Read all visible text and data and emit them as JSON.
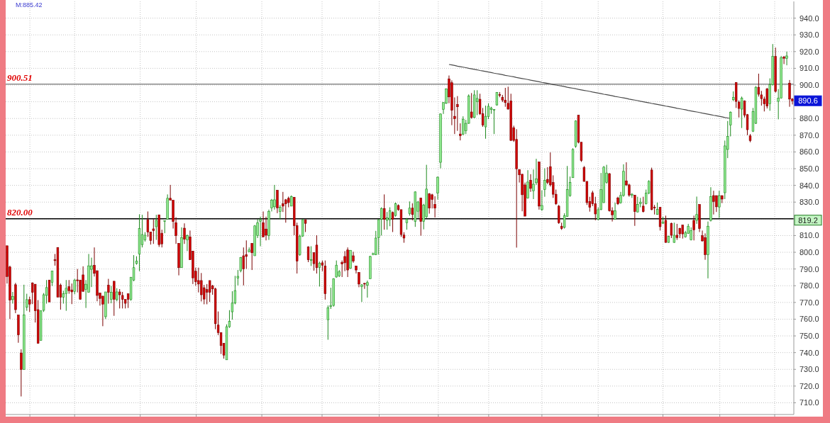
{
  "chart_data": {
    "type": "candlestick",
    "categories": [
      null,
      null,
      null,
      null,
      null,
      null,
      null,
      null,
      null,
      null,
      null,
      null,
      null,
      null,
      null,
      null,
      null,
      null,
      null,
      null,
      null,
      null,
      null,
      null,
      null,
      null,
      null,
      null,
      null,
      null,
      null,
      null,
      null,
      null,
      null,
      null,
      null,
      null,
      null,
      null,
      null,
      null,
      null,
      null,
      null,
      null,
      null,
      null,
      null,
      null,
      null,
      null,
      null,
      null,
      null,
      null,
      null,
      null,
      null,
      null,
      null,
      null,
      null,
      null,
      null,
      null,
      null,
      null,
      null,
      null,
      null,
      null,
      null,
      null,
      null,
      null,
      null,
      null,
      null,
      null,
      null,
      null,
      null,
      null,
      null,
      null,
      null,
      null,
      null,
      null,
      null,
      null,
      null,
      null,
      null,
      null,
      null,
      null,
      null,
      null,
      null,
      null,
      null,
      null,
      null,
      null,
      null,
      null,
      null,
      null,
      null,
      null,
      null,
      null,
      null,
      null,
      null,
      null,
      null,
      null,
      null,
      null,
      null,
      null,
      null,
      null,
      null,
      null,
      null,
      null,
      null,
      null,
      null,
      null,
      null,
      null,
      null,
      null,
      null,
      null,
      null,
      null,
      null,
      null,
      null,
      null,
      null,
      null,
      null,
      null,
      null,
      null,
      null,
      null,
      null,
      null,
      null,
      null,
      null,
      null,
      null,
      null,
      null,
      null,
      null,
      null,
      null,
      null,
      null,
      null,
      null,
      null,
      null,
      null,
      null,
      null,
      null,
      null,
      null,
      null,
      null,
      null,
      null,
      null,
      null,
      null,
      null,
      null,
      null,
      null,
      null,
      null,
      null,
      null,
      null,
      null,
      null,
      null,
      null,
      null,
      null,
      null,
      null,
      null,
      null,
      null,
      null,
      null,
      null,
      null,
      null,
      null,
      null,
      null,
      null,
      null,
      null,
      null,
      null,
      null,
      null,
      null,
      null,
      null,
      null,
      null,
      null,
      null,
      null,
      null,
      null,
      null,
      null,
      null,
      null,
      null,
      null,
      null,
      null,
      null,
      null,
      null,
      null,
      null,
      null,
      null,
      null,
      null,
      null,
      null,
      null,
      null,
      null,
      null,
      null,
      null,
      null,
      null,
      null,
      null,
      null,
      null,
      null,
      null,
      null,
      null,
      null,
      null,
      null,
      null,
      null,
      null,
      null,
      null,
      null,
      null,
      null,
      null,
      null,
      null
    ],
    "ohlc": [
      [
        803.9,
        803.9,
        781.3,
        785.5
      ],
      [
        791.2,
        792,
        760.1,
        771.4
      ],
      [
        771.7,
        776.3,
        769.3,
        773.5
      ],
      [
        780.6,
        781.7,
        763.6,
        765.7
      ],
      [
        762.5,
        762.5,
        745.9,
        750.6
      ],
      [
        739.8,
        742,
        713.8,
        729.9
      ],
      [
        729.9,
        780.6,
        729.9,
        762.5
      ],
      [
        767.1,
        775.2,
        765,
        771.7
      ],
      [
        771.7,
        773.5,
        764.3,
        769
      ],
      [
        781.7,
        782,
        769,
        776
      ],
      [
        780.9,
        780.9,
        758,
        765
      ],
      [
        765.7,
        771.4,
        745.5,
        745.5
      ],
      [
        747.3,
        765,
        747.3,
        765
      ],
      [
        765.3,
        775.6,
        764.3,
        774.6
      ],
      [
        774.2,
        783.4,
        769.3,
        778.9
      ],
      [
        783.4,
        783.4,
        770.3,
        770.3
      ],
      [
        782,
        788.8,
        779.9,
        788.8
      ],
      [
        795.5,
        799,
        792,
        795
      ],
      [
        802.9,
        802.9,
        773.2,
        773.2
      ],
      [
        780.3,
        781.3,
        765.7,
        773.2
      ],
      [
        773.2,
        777,
        769.3,
        775.2
      ],
      [
        775.2,
        783.4,
        765,
        778.5
      ],
      [
        779.4,
        783.4,
        775.2,
        777
      ],
      [
        777.5,
        781.3,
        769,
        776.3
      ],
      [
        776.6,
        784.1,
        774.9,
        783.4
      ],
      [
        783.5,
        790,
        776,
        783
      ],
      [
        783.4,
        783.4,
        771.8,
        771.8
      ],
      [
        786.5,
        791.6,
        776.6,
        776.6
      ],
      [
        777.8,
        783.4,
        766.7,
        780.9
      ],
      [
        776,
        799,
        776,
        791.9
      ],
      [
        789.8,
        796.8,
        779.2,
        791.9
      ],
      [
        792.2,
        802.9,
        785.5,
        787.4
      ],
      [
        789,
        789,
        770.7,
        774.2
      ],
      [
        775.6,
        775.6,
        768.1,
        772.4
      ],
      [
        773.8,
        773.8,
        755.8,
        769
      ],
      [
        761.5,
        776.3,
        760.1,
        776.3
      ],
      [
        780.3,
        784.1,
        769.3,
        776
      ],
      [
        771.8,
        779.9,
        769.5,
        776
      ],
      [
        782.7,
        782.7,
        762,
        771.8
      ],
      [
        771.7,
        778.5,
        770.7,
        776.3
      ],
      [
        776.3,
        778,
        766.4,
        774.6
      ],
      [
        774.2,
        776.3,
        766.4,
        771.8
      ],
      [
        771.8,
        771.8,
        766.4,
        769.5
      ],
      [
        775.2,
        775.2,
        766.7,
        771.8
      ],
      [
        771.8,
        785.1,
        771,
        785.1
      ],
      [
        783.4,
        798.3,
        782.7,
        790.8
      ],
      [
        793.3,
        797.6,
        792.6,
        794.7
      ],
      [
        798.9,
        822.7,
        788.7,
        814.2
      ],
      [
        804.6,
        822.4,
        802.9,
        810.6
      ],
      [
        807.4,
        812,
        806.4,
        810.2
      ],
      [
        819.5,
        824.4,
        809.2,
        812.1
      ],
      [
        812.1,
        812.1,
        804.6,
        807.1
      ],
      [
        814,
        819.8,
        805,
        813
      ],
      [
        815.3,
        822.4,
        807.4,
        819.1
      ],
      [
        822.4,
        822.4,
        803.2,
        804.6
      ],
      [
        811.4,
        813.5,
        802.9,
        805
      ],
      [
        818.4,
        818.9,
        811.4,
        818.9
      ],
      [
        819.8,
        834.6,
        819.8,
        832.3
      ],
      [
        832.3,
        840.3,
        831.1,
        831.1
      ],
      [
        831.1,
        831.1,
        814.2,
        818.4
      ],
      [
        817.7,
        821,
        805,
        809.9
      ],
      [
        805.4,
        805.4,
        786.2,
        790.8
      ],
      [
        790.8,
        814.9,
        790.8,
        808.8
      ],
      [
        814.4,
        817.3,
        805,
        807.8
      ],
      [
        807.4,
        810.6,
        800.7,
        809.9
      ],
      [
        809.2,
        813,
        795.5,
        795.5
      ],
      [
        800.7,
        800.7,
        781,
        784.7
      ],
      [
        788.7,
        790.8,
        780,
        782.4
      ],
      [
        783.1,
        790.8,
        776,
        781
      ],
      [
        783.1,
        787.6,
        770.6,
        774.6
      ],
      [
        778.8,
        780.5,
        768.9,
        772
      ],
      [
        777.7,
        781,
        768.9,
        776
      ],
      [
        783.1,
        783.1,
        770.3,
        776
      ],
      [
        780,
        780.5,
        774.6,
        778.1
      ],
      [
        778.1,
        778.8,
        754,
        757.3
      ],
      [
        756.5,
        764.6,
        750.5,
        752
      ],
      [
        752,
        752,
        739.2,
        744.2
      ],
      [
        745.6,
        745.6,
        736.4,
        738.5
      ],
      [
        735.7,
        756.9,
        735.7,
        755.5
      ],
      [
        755.5,
        765.4,
        754.8,
        758.7
      ],
      [
        764.4,
        776.7,
        759.7,
        769.6
      ],
      [
        769.6,
        785.9,
        768.9,
        777.1
      ],
      [
        784.5,
        789.4,
        780.2,
        785.6
      ],
      [
        789,
        797.2,
        788,
        796.9
      ],
      [
        797.9,
        802.9,
        780.2,
        790.1
      ],
      [
        798.6,
        807.1,
        790.1,
        797.5
      ],
      [
        800.3,
        802.9,
        800,
        801.4
      ],
      [
        805.4,
        805.4,
        789.4,
        799.7
      ],
      [
        797.9,
        816.3,
        797.9,
        815.8
      ],
      [
        809.9,
        819.8,
        808.5,
        817.7
      ],
      [
        818.4,
        821.3,
        803.6,
        819.5
      ],
      [
        817.7,
        824.4,
        809.2,
        809.2
      ],
      [
        813.9,
        821.3,
        807.1,
        810.2
      ],
      [
        810,
        825.5,
        807.4,
        824.3
      ],
      [
        826.6,
        831.9,
        824.4,
        831.2
      ],
      [
        827.2,
        840.3,
        825.5,
        831.4
      ],
      [
        837.1,
        837.1,
        823.4,
        826.6
      ],
      [
        824.4,
        828.3,
        819.8,
        826.9
      ],
      [
        829,
        836.1,
        824.1,
        827.6
      ],
      [
        831.4,
        831.9,
        817.7,
        829
      ],
      [
        832.3,
        833.3,
        826.9,
        829.7
      ],
      [
        827.6,
        834,
        827.6,
        833.3
      ],
      [
        832.9,
        832.9,
        810.2,
        815.9
      ],
      [
        815.9,
        817.7,
        787.3,
        794.7
      ],
      [
        798.6,
        810.6,
        797.9,
        809.7
      ],
      [
        809.7,
        819.8,
        809.2,
        819.5
      ],
      [
        819.5,
        819.5,
        812.1,
        817.3
      ],
      [
        803.2,
        803.6,
        794.1,
        795.5
      ],
      [
        795.1,
        803.6,
        791.8,
        795.5
      ],
      [
        799.8,
        799.8,
        789,
        793.2
      ],
      [
        804.3,
        810.2,
        787.3,
        790.8
      ],
      [
        791,
        794.4,
        779.5,
        793.5
      ],
      [
        793.7,
        795.1,
        788.7,
        792.3
      ],
      [
        791.8,
        795.1,
        771.7,
        775.3
      ],
      [
        759.7,
        768.2,
        747.7,
        766.8
      ],
      [
        767.5,
        778.8,
        766.1,
        768.2
      ],
      [
        768.2,
        784.5,
        767.5,
        784.2
      ],
      [
        785.2,
        795.1,
        784.8,
        792.3
      ],
      [
        785.9,
        789.4,
        785.2,
        788.4
      ],
      [
        794,
        795.1,
        785.2,
        793
      ],
      [
        797.5,
        800.7,
        788.7,
        793.7
      ],
      [
        801.4,
        802.9,
        785.2,
        789.4
      ],
      [
        790.4,
        801.2,
        790.1,
        801.2
      ],
      [
        797.9,
        800.3,
        793.7,
        794.7
      ],
      [
        791.8,
        791.8,
        787.3,
        789.4
      ],
      [
        788,
        788,
        779.1,
        781
      ],
      [
        779.5,
        781,
        770.3,
        780.5
      ],
      [
        781.4,
        781.7,
        778.1,
        781
      ],
      [
        780.2,
        783.1,
        772.9,
        781.9
      ],
      [
        784.2,
        797.9,
        784.2,
        797.5
      ],
      [
        798.6,
        799.7,
        798.3,
        799.3
      ],
      [
        798.6,
        812.8,
        798.3,
        808.5
      ],
      [
        808.8,
        819.8,
        798.6,
        819.5
      ],
      [
        819.8,
        826.9,
        810,
        826.2
      ],
      [
        826.2,
        834.6,
        813.5,
        819.8
      ],
      [
        819.1,
        824.1,
        813.5,
        820.5
      ],
      [
        819.5,
        826.9,
        815.6,
        824.8
      ],
      [
        823.8,
        824.4,
        812.1,
        819.8
      ],
      [
        822,
        829.7,
        821.3,
        829
      ],
      [
        828,
        828.6,
        824.8,
        825.5
      ],
      [
        825.5,
        825.5,
        809.2,
        810.6
      ],
      [
        810.3,
        812,
        805.7,
        808.5
      ],
      [
        817.7,
        820.5,
        813.5,
        819.8
      ],
      [
        823.1,
        830.4,
        821.9,
        826.4
      ],
      [
        826.4,
        829.3,
        819.1,
        822.6
      ],
      [
        818.4,
        836.4,
        815.2,
        836.1
      ],
      [
        824.5,
        830.7,
        820.5,
        830.1
      ],
      [
        832.5,
        832.5,
        809.9,
        818.4
      ],
      [
        818.4,
        829,
        813.7,
        828.3
      ],
      [
        821.2,
        852.3,
        820.5,
        837.8
      ],
      [
        835,
        835.4,
        823.1,
        826.4
      ],
      [
        834.4,
        835,
        826.2,
        831.5
      ],
      [
        828.7,
        833.5,
        820.8,
        826.4
      ],
      [
        835.4,
        845.3,
        831.5,
        844.9
      ],
      [
        853.8,
        883,
        850.2,
        882.7
      ],
      [
        885.5,
        889.8,
        882.7,
        889.5
      ],
      [
        889.1,
        898,
        888.7,
        897.6
      ],
      [
        903.7,
        905.7,
        889.1,
        892.9
      ],
      [
        901.4,
        902.8,
        876,
        884.9
      ],
      [
        881.3,
        892.6,
        870.7,
        879.9
      ],
      [
        888.4,
        893.4,
        872.6,
        887
      ],
      [
        870.7,
        877.1,
        866.9,
        869.7
      ],
      [
        870.7,
        881.3,
        870,
        879.6
      ],
      [
        872.6,
        879.2,
        870.7,
        877.1
      ],
      [
        877.1,
        894.4,
        876.8,
        893.4
      ],
      [
        883.9,
        895.2,
        879.9,
        880.6
      ],
      [
        880.6,
        896.9,
        880.2,
        894.1
      ],
      [
        890,
        896.9,
        882,
        892
      ],
      [
        891.5,
        894.8,
        882.1,
        882.8
      ],
      [
        882.8,
        886.3,
        875,
        876
      ],
      [
        875,
        887.7,
        867.9,
        881.3
      ],
      [
        881.1,
        889.1,
        879.6,
        887.3
      ],
      [
        885.3,
        887,
        882.8,
        886.3
      ],
      [
        884.9,
        885.4,
        870.7,
        885.4
      ],
      [
        888.1,
        895.8,
        887.7,
        895.5
      ],
      [
        894.3,
        895.8,
        892.7,
        893.8
      ],
      [
        892.7,
        894.1,
        889.8,
        891
      ],
      [
        891,
        898.3,
        887,
        889.5
      ],
      [
        889.1,
        899,
        885.3,
        885.6
      ],
      [
        890.5,
        894.8,
        866.5,
        866.9
      ],
      [
        874.5,
        875.7,
        866,
        866.9
      ],
      [
        867.5,
        873.6,
        802.8,
        849.9
      ],
      [
        849.5,
        849.5,
        841.7,
        846.3
      ],
      [
        846.7,
        846.7,
        824.5,
        834.4
      ],
      [
        840.3,
        841.7,
        821.6,
        821.6
      ],
      [
        832.5,
        849.1,
        832.1,
        842
      ],
      [
        843.1,
        846.7,
        836.1,
        838.2
      ],
      [
        836.8,
        849.5,
        831.8,
        840.7
      ],
      [
        841.6,
        855.9,
        840.3,
        843.8
      ],
      [
        854,
        854,
        825.5,
        827.6
      ],
      [
        825.5,
        837.1,
        824.8,
        828
      ],
      [
        837.5,
        850.2,
        833.2,
        843.1
      ],
      [
        843.6,
        850.9,
        840.7,
        841.7
      ],
      [
        851.2,
        859.7,
        839.3,
        840.3
      ],
      [
        841.7,
        846,
        832.5,
        834.7
      ],
      [
        834.7,
        837.5,
        828.3,
        829
      ],
      [
        827.6,
        828.3,
        817,
        817.7
      ],
      [
        815.6,
        817.7,
        813.4,
        814.2
      ],
      [
        814.9,
        823.3,
        814.2,
        821.9
      ],
      [
        821.5,
        851.6,
        821.2,
        837.5
      ],
      [
        833.9,
        845.3,
        833.2,
        841.7
      ],
      [
        844.6,
        862.2,
        844.6,
        861.5
      ],
      [
        863.4,
        878.9,
        862.5,
        878.5
      ],
      [
        882,
        882,
        865.1,
        865.8
      ],
      [
        865.8,
        865.8,
        854,
        854.9
      ],
      [
        850.6,
        851.6,
        842.2,
        842.4
      ],
      [
        842.4,
        842.4,
        828.3,
        829.7
      ],
      [
        830.4,
        833.2,
        824.3,
        826.9
      ],
      [
        835.6,
        836.8,
        827.6,
        829
      ],
      [
        829,
        833.2,
        819.1,
        822.9
      ],
      [
        819.8,
        826.9,
        819.1,
        825.5
      ],
      [
        825.5,
        847.4,
        825.2,
        837.5
      ],
      [
        829.7,
        851.6,
        829.4,
        850.9
      ],
      [
        841.7,
        852.3,
        841,
        847.4
      ],
      [
        847,
        847.4,
        824.3,
        824.8
      ],
      [
        824.8,
        826.9,
        818.4,
        822.4
      ],
      [
        819.8,
        829.7,
        819.5,
        824.8
      ],
      [
        832.5,
        833.2,
        828.3,
        829
      ],
      [
        829.7,
        836.1,
        829,
        834
      ],
      [
        834,
        852.6,
        833.2,
        848.4
      ],
      [
        842.7,
        853.8,
        839.6,
        840.3
      ],
      [
        840.3,
        841,
        833.2,
        834.2
      ],
      [
        834.2,
        835.4,
        832.5,
        834.7
      ],
      [
        834.2,
        834.2,
        815.8,
        824.3
      ],
      [
        824.1,
        833.2,
        823.8,
        828.6
      ],
      [
        829,
        832.5,
        826.9,
        830
      ],
      [
        827.6,
        833.2,
        823.8,
        824.3
      ],
      [
        829,
        837.5,
        828.6,
        835.4
      ],
      [
        835.4,
        843.1,
        834.7,
        842.4
      ],
      [
        849.2,
        850.6,
        825.2,
        825.5
      ],
      [
        827,
        828.3,
        822.6,
        826.5
      ],
      [
        822.6,
        829.7,
        822.4,
        825.7
      ],
      [
        826.9,
        826.9,
        813,
        815.3
      ],
      [
        817.3,
        821.2,
        817,
        818.1
      ],
      [
        819.1,
        821.9,
        805.7,
        805.9
      ],
      [
        805.9,
        809.9,
        805.7,
        809.6
      ],
      [
        817.3,
        817.7,
        808.5,
        810.2
      ],
      [
        805.9,
        817.7,
        805.7,
        810.2
      ],
      [
        810.2,
        817,
        807.4,
        808.8
      ],
      [
        814.4,
        814.4,
        808.5,
        811
      ],
      [
        816.3,
        816.3,
        808.2,
        811
      ],
      [
        809.2,
        812.8,
        808.8,
        811.6
      ],
      [
        811.3,
        817,
        811,
        815.6
      ],
      [
        807.4,
        814.9,
        807.1,
        813
      ],
      [
        819.1,
        821.9,
        807.1,
        813.4
      ],
      [
        819.1,
        833.3,
        817,
        822.6
      ],
      [
        828.6,
        828.6,
        812.1,
        814.2
      ],
      [
        809.9,
        813,
        806.4,
        806.8
      ],
      [
        808.8,
        811.3,
        795.5,
        798.6
      ],
      [
        798.6,
        818.4,
        784.4,
        815.6
      ],
      [
        819.1,
        838.9,
        818.4,
        833.2
      ],
      [
        833.9,
        836.8,
        822.6,
        830.4
      ],
      [
        833.9,
        833.9,
        824.1,
        827.2
      ],
      [
        827.1,
        836.8,
        820.5,
        833.9
      ],
      [
        833.9,
        833.9,
        829.4,
        831.8
      ],
      [
        835.6,
        866.8,
        831.8,
        863.6
      ],
      [
        861.5,
        878.5,
        856.3,
        869.3
      ],
      [
        876.1,
        884.2,
        869.3,
        883.8
      ],
      [
        891.2,
        896.2,
        890.5,
        892.6
      ],
      [
        901.6,
        901.6,
        886.3,
        890.2
      ],
      [
        889.8,
        890.8,
        880.6,
        886
      ],
      [
        885.6,
        893.1,
        874.3,
        892.2
      ],
      [
        890.5,
        890.8,
        880.6,
        882
      ],
      [
        882.3,
        882.7,
        870,
        873.3
      ],
      [
        869.6,
        870.7,
        865.8,
        866.8
      ],
      [
        872.4,
        886.3,
        871.9,
        884.2
      ],
      [
        877.1,
        899.3,
        876.7,
        898.7
      ],
      [
        898.7,
        906.8,
        893.1,
        894.5
      ],
      [
        894.1,
        896.5,
        887.7,
        891.9
      ],
      [
        891.6,
        893.1,
        884.2,
        888.8
      ],
      [
        897.6,
        898.3,
        886,
        887.4
      ],
      [
        888.8,
        904,
        884.6,
        900.2
      ],
      [
        900.2,
        924.5,
        899.7,
        917.1
      ],
      [
        917.1,
        922.4,
        895.5,
        896.2
      ],
      [
        890.2,
        897.6,
        879.5,
        892.2
      ],
      [
        892.2,
        917.4,
        891.9,
        916.3
      ],
      [
        916.7,
        917.4,
        912.5,
        916
      ],
      [
        916,
        920,
        911.8,
        917.4
      ],
      [
        901.1,
        903,
        887,
        891.6
      ],
      [
        891.6,
        892.2,
        888.4,
        890.6
      ]
    ],
    "series": [
      {
        "type": "line",
        "color": "#4a4a4a",
        "values": [
          null,
          null,
          null,
          null,
          null,
          null,
          null,
          null,
          null,
          null,
          null,
          null,
          null,
          null,
          null,
          null,
          null,
          null,
          null,
          null,
          null,
          null,
          null,
          null,
          null,
          null,
          null,
          null,
          null,
          null,
          null,
          null,
          null,
          null,
          null,
          null,
          null,
          null,
          null,
          null,
          null,
          null,
          null,
          null,
          null,
          null,
          null,
          null,
          null,
          null,
          null,
          null,
          null,
          null,
          null,
          null,
          null,
          null,
          null,
          null,
          null,
          null,
          null,
          null,
          null,
          null,
          null,
          null,
          null,
          null,
          null,
          null,
          null,
          null,
          null,
          null,
          null,
          null,
          null,
          null,
          null,
          null,
          null,
          null,
          null,
          null,
          null,
          null,
          null,
          null,
          null,
          null,
          null,
          null,
          null,
          null,
          null,
          null,
          null,
          null,
          null,
          null,
          null,
          null,
          null,
          null,
          null,
          null,
          null,
          null,
          null,
          null,
          null,
          null,
          null,
          null,
          null,
          null,
          null,
          null,
          null,
          null,
          null,
          null,
          null,
          null,
          null,
          null,
          null,
          null,
          null,
          null,
          null,
          null,
          null,
          null,
          null,
          null,
          null,
          null,
          null,
          null,
          null,
          null,
          null,
          null,
          null,
          null,
          null,
          null,
          null,
          null,
          null,
          null,
          null,
          null,
          null,
          912.3,
          912.0,
          911.7,
          911.3,
          911.0,
          910.7,
          910.4,
          910.0,
          909.7,
          909.4,
          909.1,
          908.7,
          908.4,
          908.1,
          907.8,
          907.5,
          907.1,
          906.8,
          906.5,
          906.2,
          905.8,
          905.5,
          905.2,
          904.9,
          904.5,
          904.2,
          903.9,
          903.6,
          903.3,
          902.9,
          902.6,
          902.3,
          902.0,
          901.6,
          901.3,
          901.0,
          900.7,
          900.3,
          900.0,
          899.7,
          899.4,
          899.1,
          898.7,
          898.4,
          898.1,
          897.8,
          897.4,
          897.1,
          896.8,
          896.5,
          896.2,
          895.8,
          895.5,
          895.2,
          894.9,
          894.5,
          894.2,
          893.9,
          893.6,
          893.2,
          892.9,
          892.6,
          892.3,
          892.0,
          891.6,
          891.3,
          891.0,
          890.7,
          890.3,
          890.0,
          889.7,
          889.4,
          889.0,
          888.7,
          888.4,
          888.1,
          887.8,
          887.4,
          887.1,
          886.8,
          886.5,
          886.1,
          885.8,
          885.5,
          885.2,
          884.8,
          884.5,
          884.2,
          883.9,
          883.6,
          883.2,
          882.9,
          882.6,
          882.3,
          881.9,
          881.6,
          881.3,
          881.0,
          880.6,
          880.3,
          880.0,
          null,
          null,
          null,
          null,
          null,
          null,
          null,
          null,
          null,
          null,
          null,
          null,
          null,
          null,
          null,
          null,
          null,
          null,
          null,
          null,
          null,
          null
        ]
      }
    ],
    "ylim": [
      703,
      950
    ],
    "yticks": [
      {
        "value": 710,
        "label": "710.0"
      },
      {
        "value": 720,
        "label": "720.0"
      },
      {
        "value": 730,
        "label": "730.0"
      },
      {
        "value": 740,
        "label": "740.0"
      },
      {
        "value": 750,
        "label": "750.0"
      },
      {
        "value": 760,
        "label": "760.0"
      },
      {
        "value": 770,
        "label": "770.0"
      },
      {
        "value": 780,
        "label": "780.0"
      },
      {
        "value": 790,
        "label": "790.0"
      },
      {
        "value": 800,
        "label": "800.0"
      },
      {
        "value": 810,
        "label": "810.0"
      },
      {
        "value": 820,
        "label": null
      },
      {
        "value": 830,
        "label": "830.0"
      },
      {
        "value": 840,
        "label": "840.0"
      },
      {
        "value": 850,
        "label": "850.0"
      },
      {
        "value": 860,
        "label": "860.0"
      },
      {
        "value": 870,
        "label": "870.0"
      },
      {
        "value": 880,
        "label": "880.0"
      },
      {
        "value": 890,
        "label": null
      },
      {
        "value": 900,
        "label": "900.0"
      },
      {
        "value": 910,
        "label": "910.0"
      },
      {
        "value": 920,
        "label": "920.0"
      },
      {
        "value": 930,
        "label": "930.0"
      },
      {
        "value": 940,
        "label": "940.0"
      }
    ],
    "grid": true,
    "tick_labels": "y",
    "ref_lines": [
      {
        "axis": "y",
        "value": 900.51,
        "label": "900.51",
        "color": "#8a8a8a"
      },
      {
        "axis": "y",
        "value": 820,
        "label": "820.00",
        "color": "#000000"
      }
    ],
    "annotations": [
      "M:885.42",
      {
        "text": "890.6",
        "y": 890.6
      },
      {
        "text": "819.2",
        "y": 819.2
      }
    ]
  }
}
